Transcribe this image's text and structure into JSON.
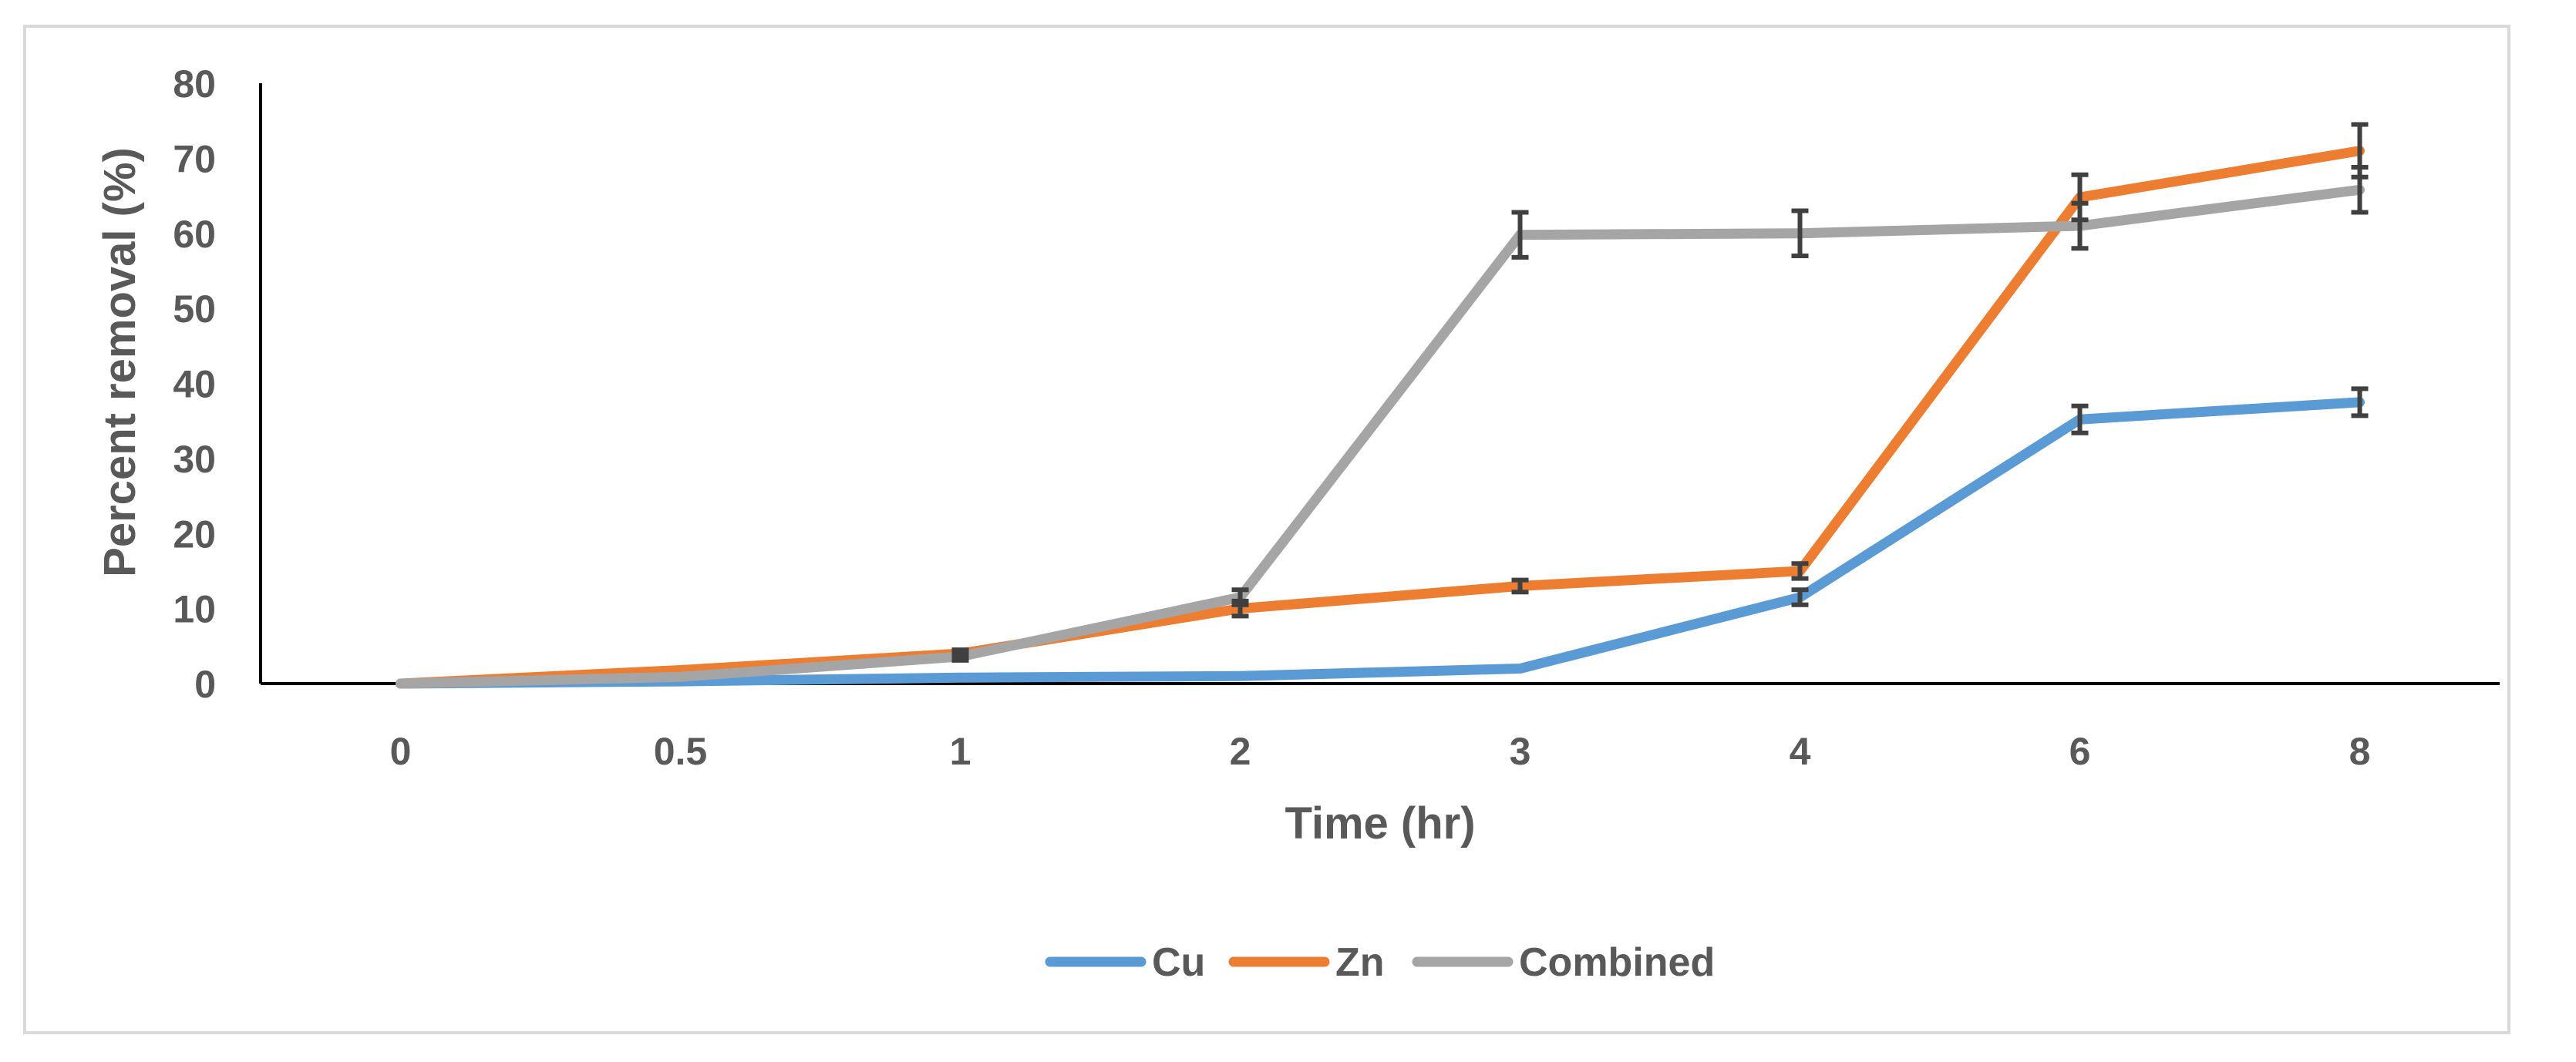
{
  "chart_data": {
    "type": "line",
    "title": "",
    "xlabel": "Time (hr)",
    "ylabel": "Percent removal (%)",
    "categories": [
      "0",
      "0.5",
      "1",
      "2",
      "3",
      "4",
      "6",
      "8"
    ],
    "ylim": [
      0,
      80
    ],
    "yticks": [
      0,
      10,
      20,
      30,
      40,
      50,
      60,
      70,
      80
    ],
    "grid": false,
    "legend_position": "bottom",
    "series": [
      {
        "name": "Cu",
        "color": "#5B9BD5",
        "values": [
          0,
          0.3,
          0.8,
          1,
          2,
          11.5,
          35.2,
          37.5
        ],
        "errors": [
          0,
          0,
          0,
          0,
          0,
          1,
          1.8,
          1.8
        ]
      },
      {
        "name": "Zn",
        "color": "#ED7D31",
        "values": [
          0,
          1.8,
          4,
          10,
          13,
          15,
          64.8,
          71
        ],
        "errors": [
          0,
          0,
          0.5,
          1,
          0.8,
          1,
          3,
          3.5
        ]
      },
      {
        "name": "Combined",
        "color": "#A5A5A5",
        "values": [
          0,
          0.9,
          3.6,
          11.5,
          59.8,
          60,
          61,
          65.8
        ],
        "errors": [
          0,
          0,
          0.5,
          1,
          3,
          3,
          3,
          3
        ]
      }
    ]
  }
}
